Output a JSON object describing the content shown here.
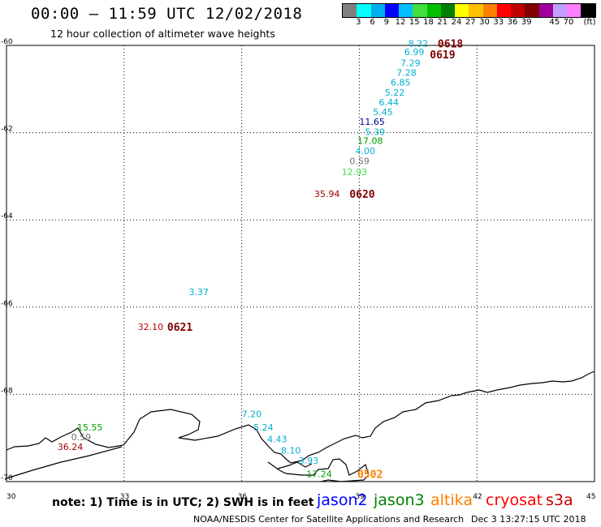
{
  "title": "00:00 – 11:59 UTC 12/02/2018",
  "subtitle": "12 hour collection of altimeter wave heights",
  "scale": {
    "colors": [
      "#808080",
      "#00ffff",
      "#00b0f0",
      "#0000ff",
      "#00c0ff",
      "#40e040",
      "#00c000",
      "#008000",
      "#ffff00",
      "#ffc000",
      "#ff8000",
      "#ff0000",
      "#c00000",
      "#800000",
      "#a000a0",
      "#c0a0ff",
      "#ff80ff",
      "#000000"
    ],
    "labels": [
      "3",
      "6",
      "9",
      "12",
      "15",
      "18",
      "21",
      "24",
      "27",
      "30",
      "33",
      "36",
      "39",
      "45",
      "70"
    ],
    "unit": "(ft)"
  },
  "axes": {
    "x_ticks": [
      "30",
      "33",
      "36",
      "39",
      "42",
      "45"
    ],
    "y_ticks": [
      "-60",
      "-62",
      "-64",
      "-66",
      "-68",
      "-70"
    ]
  },
  "wave_values": [
    {
      "text": "8.32",
      "color": "#00b0d0",
      "x": 40.25,
      "y": -59.95
    },
    {
      "text": "6.99",
      "color": "#00b0d0",
      "x": 40.15,
      "y": -60.15
    },
    {
      "text": "7.29",
      "color": "#00b0d0",
      "x": 40.05,
      "y": -60.4
    },
    {
      "text": "7.28",
      "color": "#00b0d0",
      "x": 39.95,
      "y": -60.62
    },
    {
      "text": "6.85",
      "color": "#00b0d0",
      "x": 39.8,
      "y": -60.85
    },
    {
      "text": "5.22",
      "color": "#00b0d0",
      "x": 39.65,
      "y": -61.08
    },
    {
      "text": "6.44",
      "color": "#00b0d0",
      "x": 39.5,
      "y": -61.3
    },
    {
      "text": "5.45",
      "color": "#00b0d0",
      "x": 39.35,
      "y": -61.52
    },
    {
      "text": "11.65",
      "color": "#0000a0",
      "x": 39.0,
      "y": -61.75
    },
    {
      "text": "5.39",
      "color": "#00b0d0",
      "x": 39.15,
      "y": -61.98
    },
    {
      "text": "17.08",
      "color": "#00a000",
      "x": 38.95,
      "y": -62.18
    },
    {
      "text": "4.00",
      "color": "#00b0d0",
      "x": 38.9,
      "y": -62.42
    },
    {
      "text": "0.59",
      "color": "#707070",
      "x": 38.75,
      "y": -62.65
    },
    {
      "text": "12.93",
      "color": "#40e040",
      "x": 38.55,
      "y": -62.9
    },
    {
      "text": "35.94",
      "color": "#a00000",
      "x": 37.85,
      "y": -63.4
    },
    {
      "text": "3.37",
      "color": "#00b0d0",
      "x": 34.65,
      "y": -65.65
    },
    {
      "text": "32.10",
      "color": "#c00000",
      "x": 33.35,
      "y": -66.45
    },
    {
      "text": "7.20",
      "color": "#00b0d0",
      "x": 36.0,
      "y": -68.45
    },
    {
      "text": "15.55",
      "color": "#00a000",
      "x": 31.8,
      "y": -68.75
    },
    {
      "text": "5.24",
      "color": "#00b0d0",
      "x": 36.3,
      "y": -68.75
    },
    {
      "text": "0.59",
      "color": "#707070",
      "x": 31.65,
      "y": -68.98
    },
    {
      "text": "4.43",
      "color": "#00b0d0",
      "x": 36.65,
      "y": -69.02
    },
    {
      "text": "36.24",
      "color": "#a00000",
      "x": 31.3,
      "y": -69.2
    },
    {
      "text": "8.10",
      "color": "#00b0d0",
      "x": 37.0,
      "y": -69.28
    },
    {
      "text": "3.93",
      "color": "#00b0d0",
      "x": 37.45,
      "y": -69.52
    },
    {
      "text": "17.24",
      "color": "#00a000",
      "x": 37.65,
      "y": -69.82
    }
  ],
  "pass_labels": [
    {
      "text": "0618",
      "color": "#800000",
      "x": 41.0,
      "y": -59.95
    },
    {
      "text": "0619",
      "color": "#800000",
      "x": 40.8,
      "y": -60.2
    },
    {
      "text": "0620",
      "color": "#800000",
      "x": 38.75,
      "y": -63.4
    },
    {
      "text": "0621",
      "color": "#800000",
      "x": 34.1,
      "y": -66.45
    },
    {
      "text": "0502",
      "color": "#ff8000",
      "x": 38.95,
      "y": -69.82
    }
  ],
  "note": "note: 1) Time is in UTC; 2) SWH is in feet",
  "satellites": [
    {
      "name": "jason2",
      "color": "#0000ff"
    },
    {
      "name": "jason3",
      "color": "#008000"
    },
    {
      "name": "altika",
      "color": "#ff8000"
    },
    {
      "name": "cryosat",
      "color": "#ff0000"
    },
    {
      "name": "s3a",
      "color": "#c00000"
    }
  ],
  "footer": "NOAA/NESDIS Center for Satellite Applications and Research",
  "timestamp": "Dec  3 13:27:15 UTC 2018"
}
